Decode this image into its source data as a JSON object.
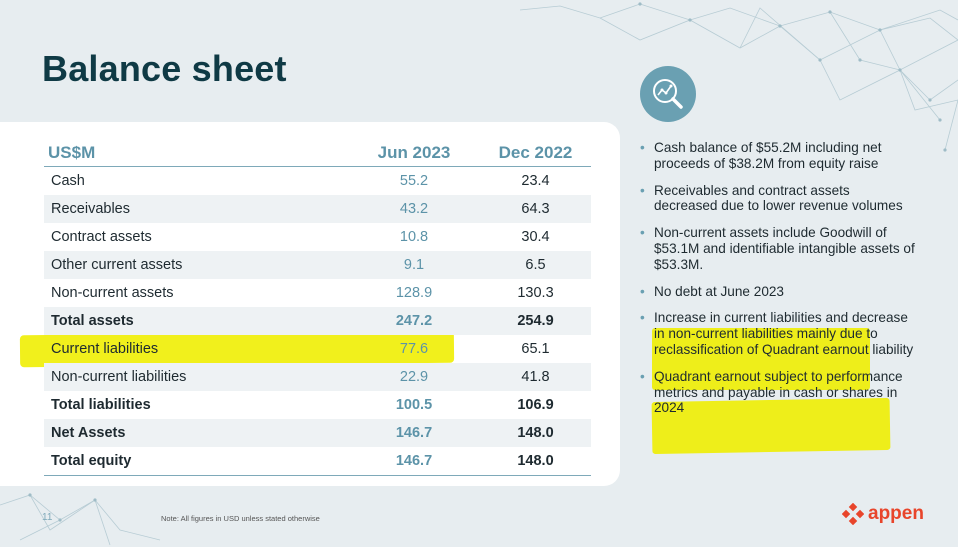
{
  "slide": {
    "title": "Balance sheet",
    "page_number": "11",
    "note": "Note: All figures in USD unless stated otherwise",
    "logo_text": "appen"
  },
  "table": {
    "headers": [
      "US$M",
      "Jun 2023",
      "Dec 2022"
    ],
    "rows": [
      {
        "label": "Cash",
        "jun": "55.2",
        "dec": "23.4",
        "total": false
      },
      {
        "label": "Receivables",
        "jun": "43.2",
        "dec": "64.3",
        "total": false
      },
      {
        "label": "Contract assets",
        "jun": "10.8",
        "dec": "30.4",
        "total": false
      },
      {
        "label": "Other current assets",
        "jun": "9.1",
        "dec": "6.5",
        "total": false
      },
      {
        "label": "Non-current assets",
        "jun": "128.9",
        "dec": "130.3",
        "total": false
      },
      {
        "label": "Total assets",
        "jun": "247.2",
        "dec": "254.9",
        "total": true
      },
      {
        "label": "Current liabilities",
        "jun": "77.6",
        "dec": "65.1",
        "total": false
      },
      {
        "label": "Non-current liabilities",
        "jun": "22.9",
        "dec": "41.8",
        "total": false
      },
      {
        "label": "Total liabilities",
        "jun": "100.5",
        "dec": "106.9",
        "total": true
      },
      {
        "label": "Net Assets",
        "jun": "146.7",
        "dec": "148.0",
        "total": true
      },
      {
        "label": "Total equity",
        "jun": "146.7",
        "dec": "148.0",
        "total": true
      }
    ]
  },
  "bullets": [
    "Cash balance of $55.2M including net proceeds of $38.2M from equity raise",
    "Receivables and contract assets decreased due to lower revenue volumes",
    "Non-current assets include Goodwill of $53.1M and identifiable intangible assets of $53.3M.",
    "No debt at June 2023",
    "Increase in current liabilities and decrease in non-current liabilities mainly due to reclassification of Quadrant earnout liability",
    "Quadrant earnout subject to performance metrics and payable in cash or shares in 2024"
  ],
  "colors": {
    "title": "#0f3a45",
    "accent": "#5c93a8",
    "highlight": "#f1f01c",
    "logo": "#e8452b",
    "background": "#e7edf0"
  },
  "icons": {
    "analytics": "magnifier-chart-icon",
    "logo_mark": "appen-diamond-icon"
  }
}
